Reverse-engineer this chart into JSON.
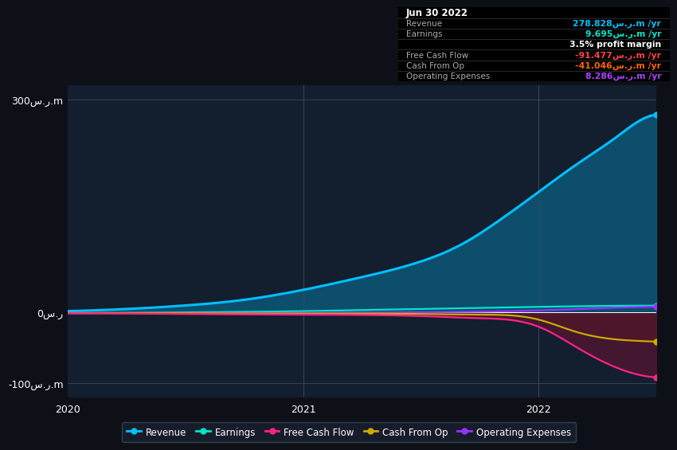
{
  "bg_color": "#0d1117",
  "plot_bg_color": "#131e2e",
  "ylim": [
    -120,
    320
  ],
  "yticks": [
    -100,
    0,
    300
  ],
  "ytick_labels": [
    "-100س.ر.m",
    "0س.ر",
    "300س.ر.m"
  ],
  "revenue_color": "#00bfff",
  "earnings_color": "#00e5cc",
  "fcf_color": "#ff2288",
  "cashop_color": "#ccaa00",
  "opex_color": "#9933ff",
  "fill_color": "#8b1a3a",
  "table_bg": "#000000",
  "table_border": "#2a2a2a",
  "table_rows": [
    {
      "label": "Jun 30 2022",
      "value": "",
      "vcolor": "#ffffff",
      "is_title": true
    },
    {
      "label": "Revenue",
      "value": "278.828س.ر.m /yr",
      "vcolor": "#00bfff",
      "is_title": false
    },
    {
      "label": "Earnings",
      "value": "9.695س.ر.m /yr",
      "vcolor": "#00e5cc",
      "is_title": false
    },
    {
      "label": "",
      "value": "3.5% profit margin",
      "vcolor": "#ffffff",
      "is_title": false
    },
    {
      "label": "Free Cash Flow",
      "value": "-91.477س.ر.m /yr",
      "vcolor": "#ff4444",
      "is_title": false
    },
    {
      "label": "Cash From Op",
      "value": "-41.046س.ر.m /yr",
      "vcolor": "#ff6600",
      "is_title": false
    },
    {
      "label": "Operating Expenses",
      "value": "8.286س.ر.m /yr",
      "vcolor": "#aa44ff",
      "is_title": false
    }
  ],
  "legend_items": [
    {
      "label": "Revenue",
      "color": "#00bfff"
    },
    {
      "label": "Earnings",
      "color": "#00e5cc"
    },
    {
      "label": "Free Cash Flow",
      "color": "#ff2288"
    },
    {
      "label": "Cash From Op",
      "color": "#ccaa00"
    },
    {
      "label": "Operating Expenses",
      "color": "#9933ff"
    }
  ]
}
